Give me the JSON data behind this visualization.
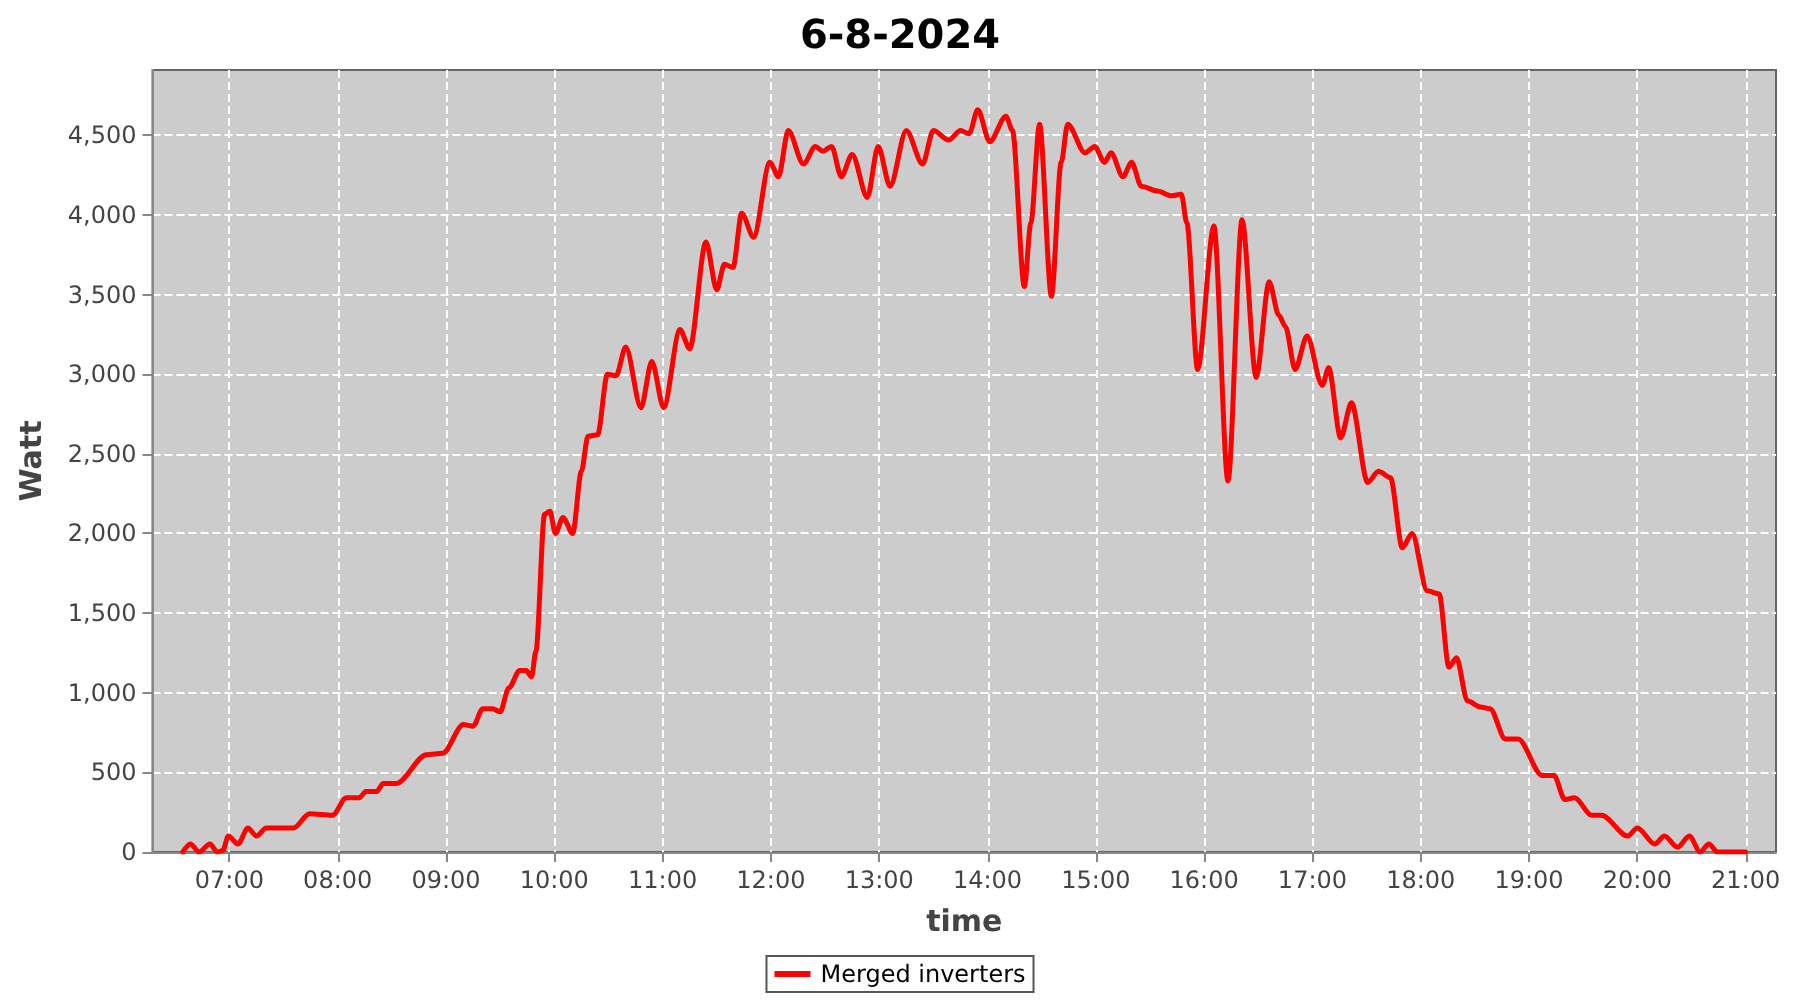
{
  "chart_data": {
    "type": "line",
    "title": "6-8-2024",
    "xlabel": "time",
    "ylabel": "Watt",
    "xlim": [
      6.29,
      21.28
    ],
    "xticks": [
      {
        "value": 7,
        "label": "07:00"
      },
      {
        "value": 8,
        "label": "08:00"
      },
      {
        "value": 9,
        "label": "09:00"
      },
      {
        "value": 10,
        "label": "10:00"
      },
      {
        "value": 11,
        "label": "11:00"
      },
      {
        "value": 12,
        "label": "12:00"
      },
      {
        "value": 13,
        "label": "13:00"
      },
      {
        "value": 14,
        "label": "14:00"
      },
      {
        "value": 15,
        "label": "15:00"
      },
      {
        "value": 16,
        "label": "16:00"
      },
      {
        "value": 17,
        "label": "17:00"
      },
      {
        "value": 18,
        "label": "18:00"
      },
      {
        "value": 19,
        "label": "19:00"
      },
      {
        "value": 20,
        "label": "20:00"
      },
      {
        "value": 21,
        "label": "21:00"
      }
    ],
    "ylim": [
      0,
      4910
    ],
    "yticks": [
      0,
      500,
      {
        "value": 1000,
        "label": "1,000"
      },
      {
        "value": 1500,
        "label": "1,500"
      },
      {
        "value": 2000,
        "label": "2,000"
      },
      {
        "value": 2500,
        "label": "2,500"
      },
      {
        "value": 3000,
        "label": "3,000"
      },
      {
        "value": 3500,
        "label": "3,500"
      },
      {
        "value": 4000,
        "label": "4,000"
      },
      {
        "value": 4500,
        "label": "4,500"
      }
    ],
    "grid": true,
    "legend": "bottom",
    "marker": "none",
    "line_style": "solid",
    "series": [
      {
        "name": "Merged inverters",
        "color": "#ff0000",
        "x": [
          6.57,
          6.64,
          6.72,
          6.82,
          6.89,
          6.94,
          6.99,
          7.08,
          7.17,
          7.25,
          7.34,
          7.59,
          7.74,
          7.95,
          8.08,
          8.2,
          8.26,
          8.36,
          8.42,
          8.54,
          8.82,
          8.97,
          9.16,
          9.25,
          9.34,
          9.43,
          9.5,
          9.58,
          9.68,
          9.74,
          9.79,
          9.83,
          9.91,
          9.96,
          10.01,
          10.08,
          10.17,
          10.25,
          10.31,
          10.4,
          10.49,
          10.57,
          10.66,
          10.8,
          10.9,
          11.01,
          11.16,
          11.25,
          11.4,
          11.5,
          11.57,
          11.65,
          11.73,
          11.84,
          11.99,
          12.07,
          12.16,
          12.3,
          12.41,
          12.48,
          12.56,
          12.65,
          12.75,
          12.89,
          12.99,
          13.1,
          13.25,
          13.4,
          13.5,
          13.64,
          13.75,
          13.83,
          13.91,
          14.02,
          14.17,
          14.23,
          14.34,
          14.4,
          14.48,
          14.59,
          14.68,
          14.74,
          14.9,
          14.99,
          15.08,
          15.14,
          15.25,
          15.33,
          15.42,
          15.57,
          15.7,
          15.79,
          15.84,
          15.94,
          16.09,
          16.22,
          16.35,
          16.48,
          16.6,
          16.69,
          16.75,
          16.84,
          16.95,
          17.09,
          17.15,
          17.26,
          17.36,
          17.51,
          17.61,
          17.72,
          17.83,
          17.92,
          18.06,
          18.17,
          18.26,
          18.33,
          18.43,
          18.55,
          18.64,
          18.78,
          18.9,
          19.12,
          19.23,
          19.33,
          19.42,
          19.58,
          19.67,
          19.91,
          20.0,
          20.16,
          20.25,
          20.37,
          20.48,
          20.58,
          20.66,
          20.74,
          21.0
        ],
        "values": [
          0,
          50,
          0,
          50,
          0,
          10,
          100,
          50,
          150,
          100,
          150,
          150,
          240,
          230,
          340,
          340,
          380,
          380,
          430,
          430,
          610,
          620,
          800,
          790,
          900,
          900,
          880,
          1030,
          1140,
          1140,
          1100,
          1260,
          2120,
          2140,
          2000,
          2100,
          2000,
          2390,
          2610,
          2620,
          3000,
          2990,
          3170,
          2790,
          3080,
          2790,
          3280,
          3160,
          3830,
          3530,
          3690,
          3670,
          4010,
          3860,
          4330,
          4240,
          4530,
          4320,
          4430,
          4400,
          4430,
          4240,
          4380,
          4110,
          4430,
          4180,
          4530,
          4320,
          4530,
          4470,
          4530,
          4510,
          4660,
          4460,
          4620,
          4530,
          3550,
          3950,
          4570,
          3490,
          4330,
          4570,
          4390,
          4430,
          4330,
          4390,
          4240,
          4330,
          4180,
          4150,
          4120,
          4130,
          3950,
          3030,
          3930,
          2330,
          3970,
          2980,
          3580,
          3370,
          3300,
          3030,
          3240,
          2930,
          3040,
          2600,
          2820,
          2320,
          2390,
          2350,
          1910,
          2000,
          1640,
          1620,
          1160,
          1220,
          950,
          910,
          900,
          710,
          710,
          480,
          480,
          330,
          340,
          230,
          230,
          100,
          150,
          50,
          100,
          30,
          100,
          0,
          50,
          0,
          0
        ]
      }
    ]
  }
}
